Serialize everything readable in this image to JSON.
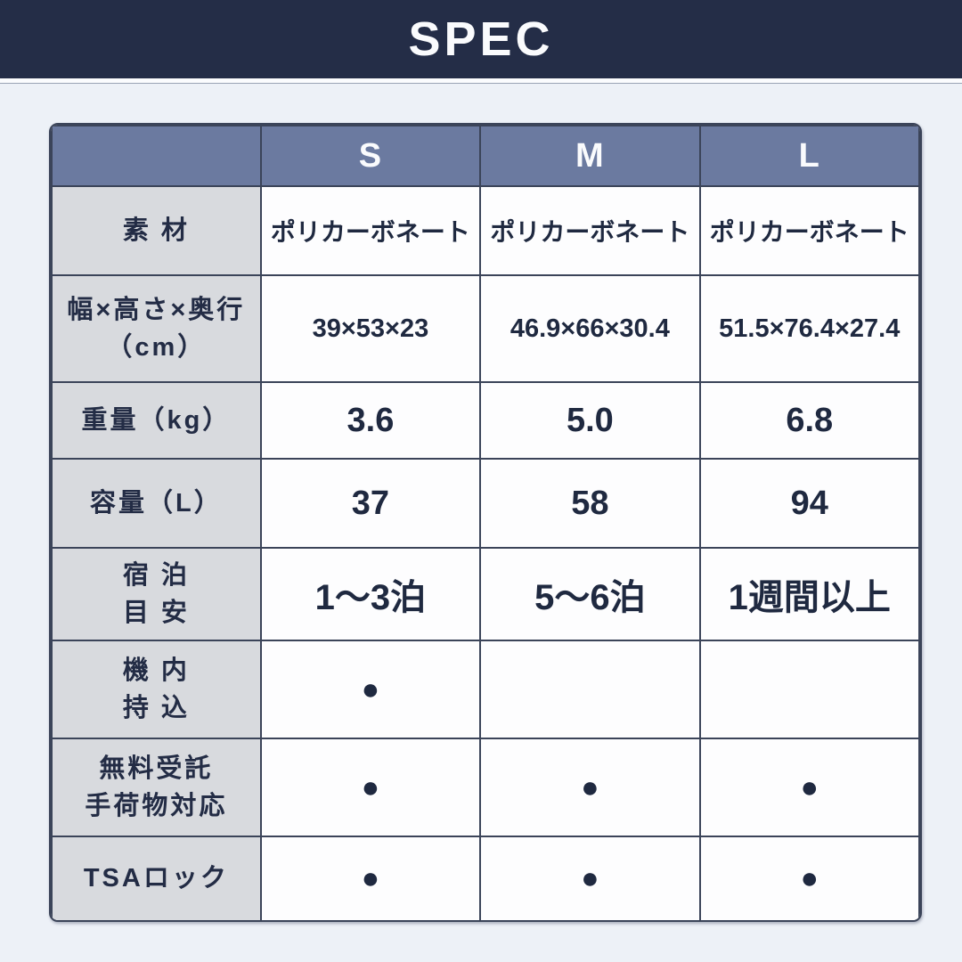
{
  "page": {
    "title": "SPEC",
    "colors": {
      "banner_navy": "#242d47",
      "header_slate_blue": "#6b7aa0",
      "label_gray": "#d8dade",
      "cell_white": "#fdfdfe",
      "page_background": "#edf1f7",
      "border_navy": "#3b4459",
      "text_navy": "#1f2940",
      "dot_navy": "#1f2940"
    }
  },
  "table": {
    "columns": [
      "",
      "S",
      "M",
      "L"
    ],
    "rows": [
      {
        "label_lines": [
          "素 材"
        ],
        "values": [
          "ポリカーボネート",
          "ポリカーボネート",
          "ポリカーボネート"
        ]
      },
      {
        "label_lines": [
          "幅×高さ×奥行",
          "（cm）"
        ],
        "values": [
          "39×53×23",
          "46.9×66×30.4",
          "51.5×76.4×27.4"
        ]
      },
      {
        "label_lines": [
          "重量（kg）"
        ],
        "values": [
          "3.6",
          "5.0",
          "6.8"
        ]
      },
      {
        "label_lines": [
          "容量（L）"
        ],
        "values": [
          "37",
          "58",
          "94"
        ]
      },
      {
        "label_lines": [
          "宿 泊",
          "目 安"
        ],
        "values": [
          "1〜3泊",
          "5〜6泊",
          "1週間以上"
        ]
      },
      {
        "label_lines": [
          "機 内",
          "持 込"
        ],
        "values": [
          "●",
          "",
          ""
        ]
      },
      {
        "label_lines": [
          "無料受託",
          "手荷物対応"
        ],
        "values": [
          "●",
          "●",
          "●"
        ]
      },
      {
        "label_lines": [
          "TSAロック"
        ],
        "values": [
          "●",
          "●",
          "●"
        ]
      }
    ]
  }
}
